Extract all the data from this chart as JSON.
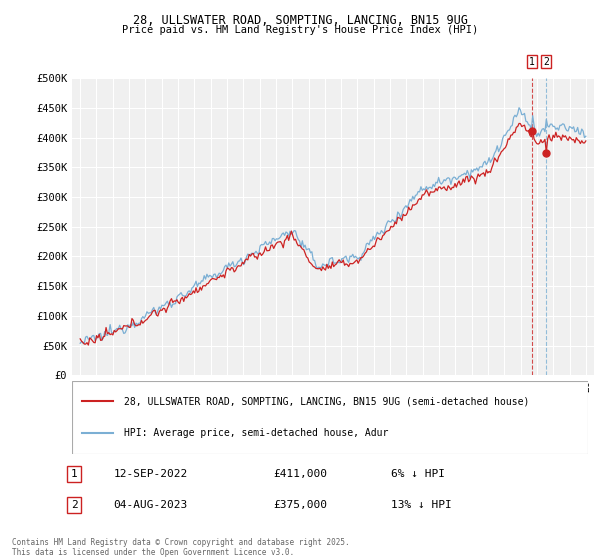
{
  "title_line1": "28, ULLSWATER ROAD, SOMPTING, LANCING, BN15 9UG",
  "title_line2": "Price paid vs. HM Land Registry's House Price Index (HPI)",
  "ylabel_ticks": [
    "£0",
    "£50K",
    "£100K",
    "£150K",
    "£200K",
    "£250K",
    "£300K",
    "£350K",
    "£400K",
    "£450K",
    "£500K"
  ],
  "ytick_values": [
    0,
    50000,
    100000,
    150000,
    200000,
    250000,
    300000,
    350000,
    400000,
    450000,
    500000
  ],
  "x_start_year": 1995,
  "x_end_year": 2026,
  "hpi_color": "#7bafd4",
  "price_color": "#cc2222",
  "legend_label_1": "28, ULLSWATER ROAD, SOMPTING, LANCING, BN15 9UG (semi-detached house)",
  "legend_label_2": "HPI: Average price, semi-detached house, Adur",
  "sale1_label": "1",
  "sale1_date": "12-SEP-2022",
  "sale1_price": "£411,000",
  "sale1_note": "6% ↓ HPI",
  "sale2_label": "2",
  "sale2_date": "04-AUG-2023",
  "sale2_price": "£375,000",
  "sale2_note": "13% ↓ HPI",
  "footer": "Contains HM Land Registry data © Crown copyright and database right 2025.\nThis data is licensed under the Open Government Licence v3.0.",
  "bg_color": "#ffffff",
  "plot_bg_color": "#f0f0f0",
  "grid_color": "#ffffff",
  "sale1_year": 2022.7,
  "sale2_year": 2023.58
}
